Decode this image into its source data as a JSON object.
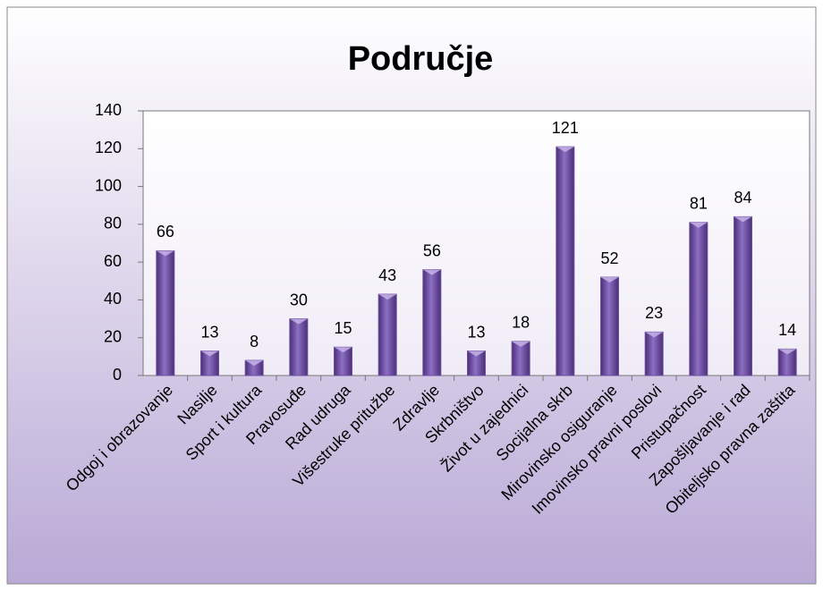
{
  "chart_data": {
    "type": "bar",
    "title": "Područje",
    "categories": [
      "Odgoj i obrazovanje",
      "Nasilje",
      "Sport i kultura",
      "Pravosuđe",
      "Rad udruga",
      "Višestruke pritužbe",
      "Zdravlje",
      "Skrbništvo",
      "Život u zajednici",
      "Socijalna skrb",
      "Mirovinsko osiguranje",
      "Imovinsko pravni poslovi",
      "Pristupačnost",
      "Zapošljavanje i rad",
      "Obiteljsko pravna zaštita"
    ],
    "values": [
      66,
      13,
      8,
      30,
      15,
      43,
      56,
      13,
      18,
      121,
      52,
      23,
      81,
      84,
      14
    ],
    "color": "#6f4f9e",
    "ylim": [
      0,
      140
    ],
    "yticks": [
      0,
      20,
      40,
      60,
      80,
      100,
      120,
      140
    ],
    "grid": false
  }
}
